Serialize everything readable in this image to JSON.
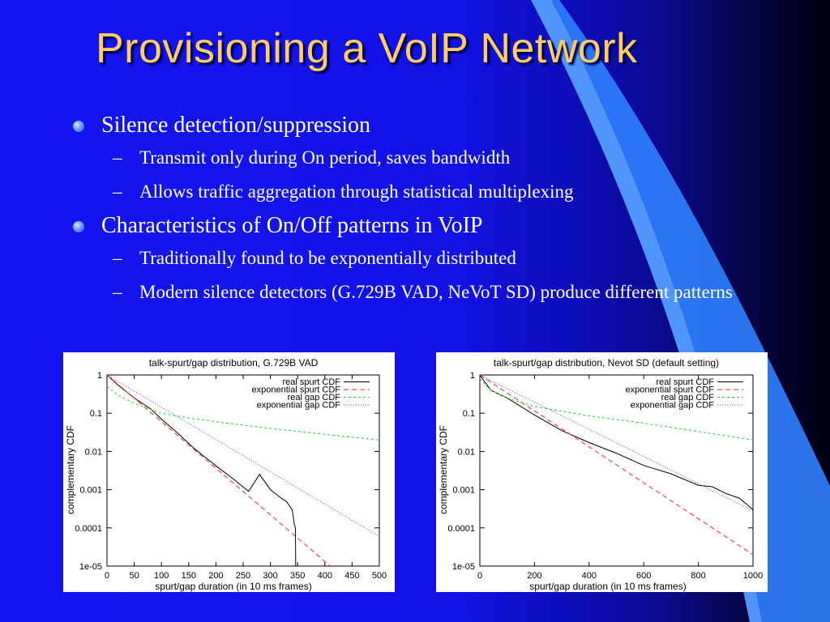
{
  "slide": {
    "title": "Provisioning a VoIP Network",
    "bullets": [
      {
        "text": "Silence detection/suppression",
        "sub": [
          "Transmit only during On period, saves bandwidth",
          "Allows traffic aggregation through statistical multiplexing"
        ]
      },
      {
        "text": "Characteristics of On/Off patterns in VoIP",
        "sub": [
          "Traditionally found to be exponentially distributed",
          "Modern silence detectors (G.729B VAD, NeVoT SD) produce different patterns"
        ]
      }
    ]
  },
  "chart_data": [
    {
      "type": "line",
      "title": "talk-spurt/gap distribution, G.729B VAD",
      "xlabel": "spurt/gap duration (in 10 ms frames)",
      "ylabel": "complementary CDF",
      "xlim": [
        0,
        500
      ],
      "ylim": [
        1e-05,
        1
      ],
      "yscale": "log",
      "xticks": [
        "0",
        "50",
        "100",
        "150",
        "200",
        "250",
        "300",
        "350",
        "400",
        "450",
        "500"
      ],
      "yticks": [
        "1e-05",
        "0.0001",
        "0.001",
        "0.01",
        "0.1",
        "1"
      ],
      "legend": "top-right",
      "series": [
        {
          "name": "real spurt CDF",
          "color": "#000000",
          "x": [
            0,
            20,
            50,
            80,
            100,
            130,
            160,
            200,
            230,
            260,
            280,
            300,
            320,
            330,
            340,
            344,
            346,
            346.5
          ],
          "y": [
            1,
            0.55,
            0.25,
            0.13,
            0.07,
            0.03,
            0.012,
            0.0042,
            0.002,
            0.0009,
            0.0025,
            0.001,
            0.0006,
            0.00048,
            0.0003,
            0.00012,
            0.0001,
            1e-05
          ]
        },
        {
          "name": "exponential spurt CDF",
          "color": "#ff2020",
          "x": [
            0,
            410
          ],
          "y": [
            1,
            1e-05
          ]
        },
        {
          "name": "real gap CDF",
          "color": "#22cc22",
          "x": [
            0,
            20,
            50,
            100,
            150,
            200,
            300,
            400,
            500
          ],
          "y": [
            0.5,
            0.3,
            0.18,
            0.1,
            0.075,
            0.06,
            0.04,
            0.028,
            0.02
          ]
        },
        {
          "name": "exponential gap CDF",
          "color": "#4040ff",
          "x": [
            0,
            500
          ],
          "y": [
            1,
            6e-05
          ]
        }
      ]
    },
    {
      "type": "line",
      "title": "talk-spurt/gap distribution, Nevot SD (default setting)",
      "xlabel": "spurt/gap duration (in 10 ms frames)",
      "ylabel": "complementary CDF",
      "xlim": [
        0,
        1000
      ],
      "ylim": [
        1e-05,
        1
      ],
      "yscale": "log",
      "xticks": [
        "0",
        "200",
        "400",
        "600",
        "800",
        "1000"
      ],
      "yticks": [
        "1e-05",
        "0.0001",
        "0.001",
        "0.01",
        "0.1",
        "1"
      ],
      "legend": "top-right",
      "series": [
        {
          "name": "real spurt CDF",
          "color": "#000000",
          "x": [
            0,
            40,
            100,
            200,
            300,
            400,
            500,
            600,
            700,
            800,
            850,
            900,
            950,
            1000
          ],
          "y": [
            1,
            0.4,
            0.25,
            0.09,
            0.035,
            0.017,
            0.009,
            0.0043,
            0.0026,
            0.0013,
            0.0012,
            0.0008,
            0.0006,
            0.0003
          ]
        },
        {
          "name": "exponential spurt CDF",
          "color": "#ff2020",
          "x": [
            0,
            1000
          ],
          "y": [
            1,
            2e-05
          ]
        },
        {
          "name": "real gap CDF",
          "color": "#22cc22",
          "x": [
            0,
            40,
            100,
            200,
            400,
            600,
            800,
            1000
          ],
          "y": [
            0.8,
            0.4,
            0.25,
            0.15,
            0.085,
            0.055,
            0.033,
            0.02
          ]
        },
        {
          "name": "exponential gap CDF",
          "color": "#4040ff",
          "x": [
            0,
            1000
          ],
          "y": [
            1,
            0.00028
          ]
        }
      ]
    }
  ]
}
